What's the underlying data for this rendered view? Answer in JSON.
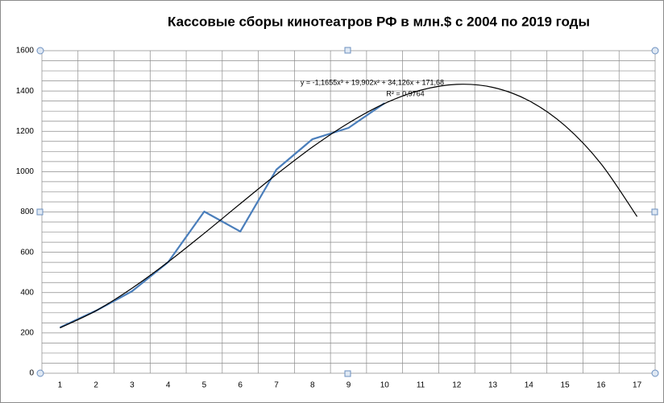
{
  "chart_data": {
    "type": "line",
    "title": "Кассовые  сборы кинотеатров РФ в млн.$ с 2004 по 2019 годы",
    "categories": [
      "1",
      "2",
      "3",
      "4",
      "5",
      "6",
      "7",
      "8",
      "9",
      "10",
      "11",
      "12",
      "13",
      "14",
      "15",
      "16",
      "17"
    ],
    "series": [
      {
        "color": "#4a7ebb",
        "values": [
          227,
          310,
          407,
          551,
          802,
          703,
          1010,
          1161,
          1217,
          1340,
          null,
          null,
          null,
          null,
          null,
          null,
          null
        ]
      },
      {
        "color": "#000000",
        "values": [
          225,
          310,
          422,
          552,
          694,
          841,
          986,
          1122,
          1241,
          1338,
          1404,
          1433,
          1418,
          1352,
          1228,
          1039,
          777
        ],
        "smooth": true
      }
    ],
    "ylim": [
      0,
      1600
    ],
    "yticks": [
      0,
      200,
      400,
      600,
      800,
      1000,
      1200,
      1400,
      1600
    ],
    "grid": true,
    "annotations": [
      "y = -1,1655x³ + 19,902x² + 34,126x + 171,68",
      "R² = 0,9764"
    ]
  }
}
